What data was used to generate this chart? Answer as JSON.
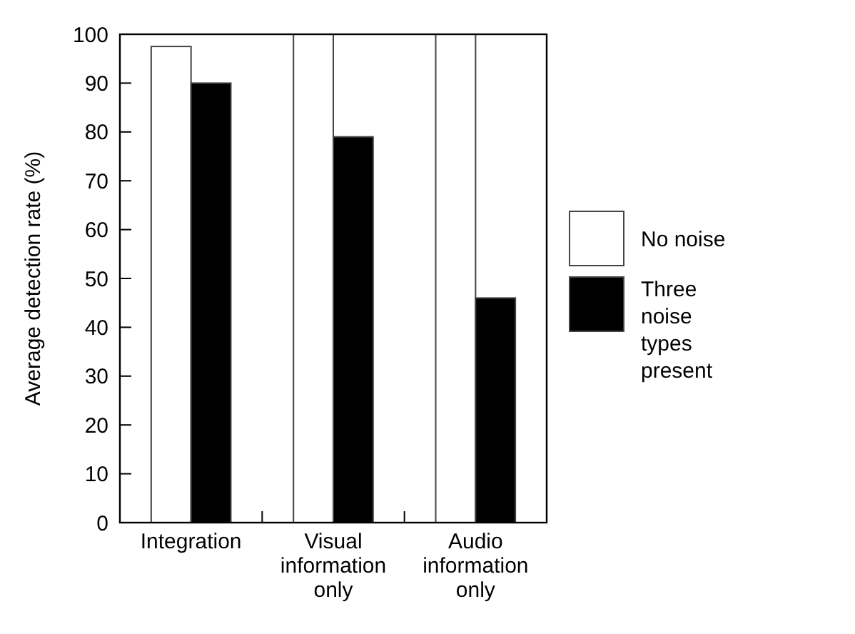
{
  "chart_data": {
    "type": "bar",
    "ylabel": "Average detection rate (%)",
    "categories": [
      "Integration",
      "Visual information only",
      "Audio information only"
    ],
    "series": [
      {
        "name": "No noise",
        "color": "#ffffff",
        "values": [
          97.5,
          100,
          100
        ]
      },
      {
        "name": "Three noise types present",
        "color": "#000000",
        "values": [
          90,
          79,
          46
        ]
      }
    ],
    "ylim": [
      0,
      100
    ],
    "yticks": [
      0,
      10,
      20,
      30,
      40,
      50,
      60,
      70,
      80,
      90,
      100
    ],
    "grid": false,
    "legend": "right"
  }
}
